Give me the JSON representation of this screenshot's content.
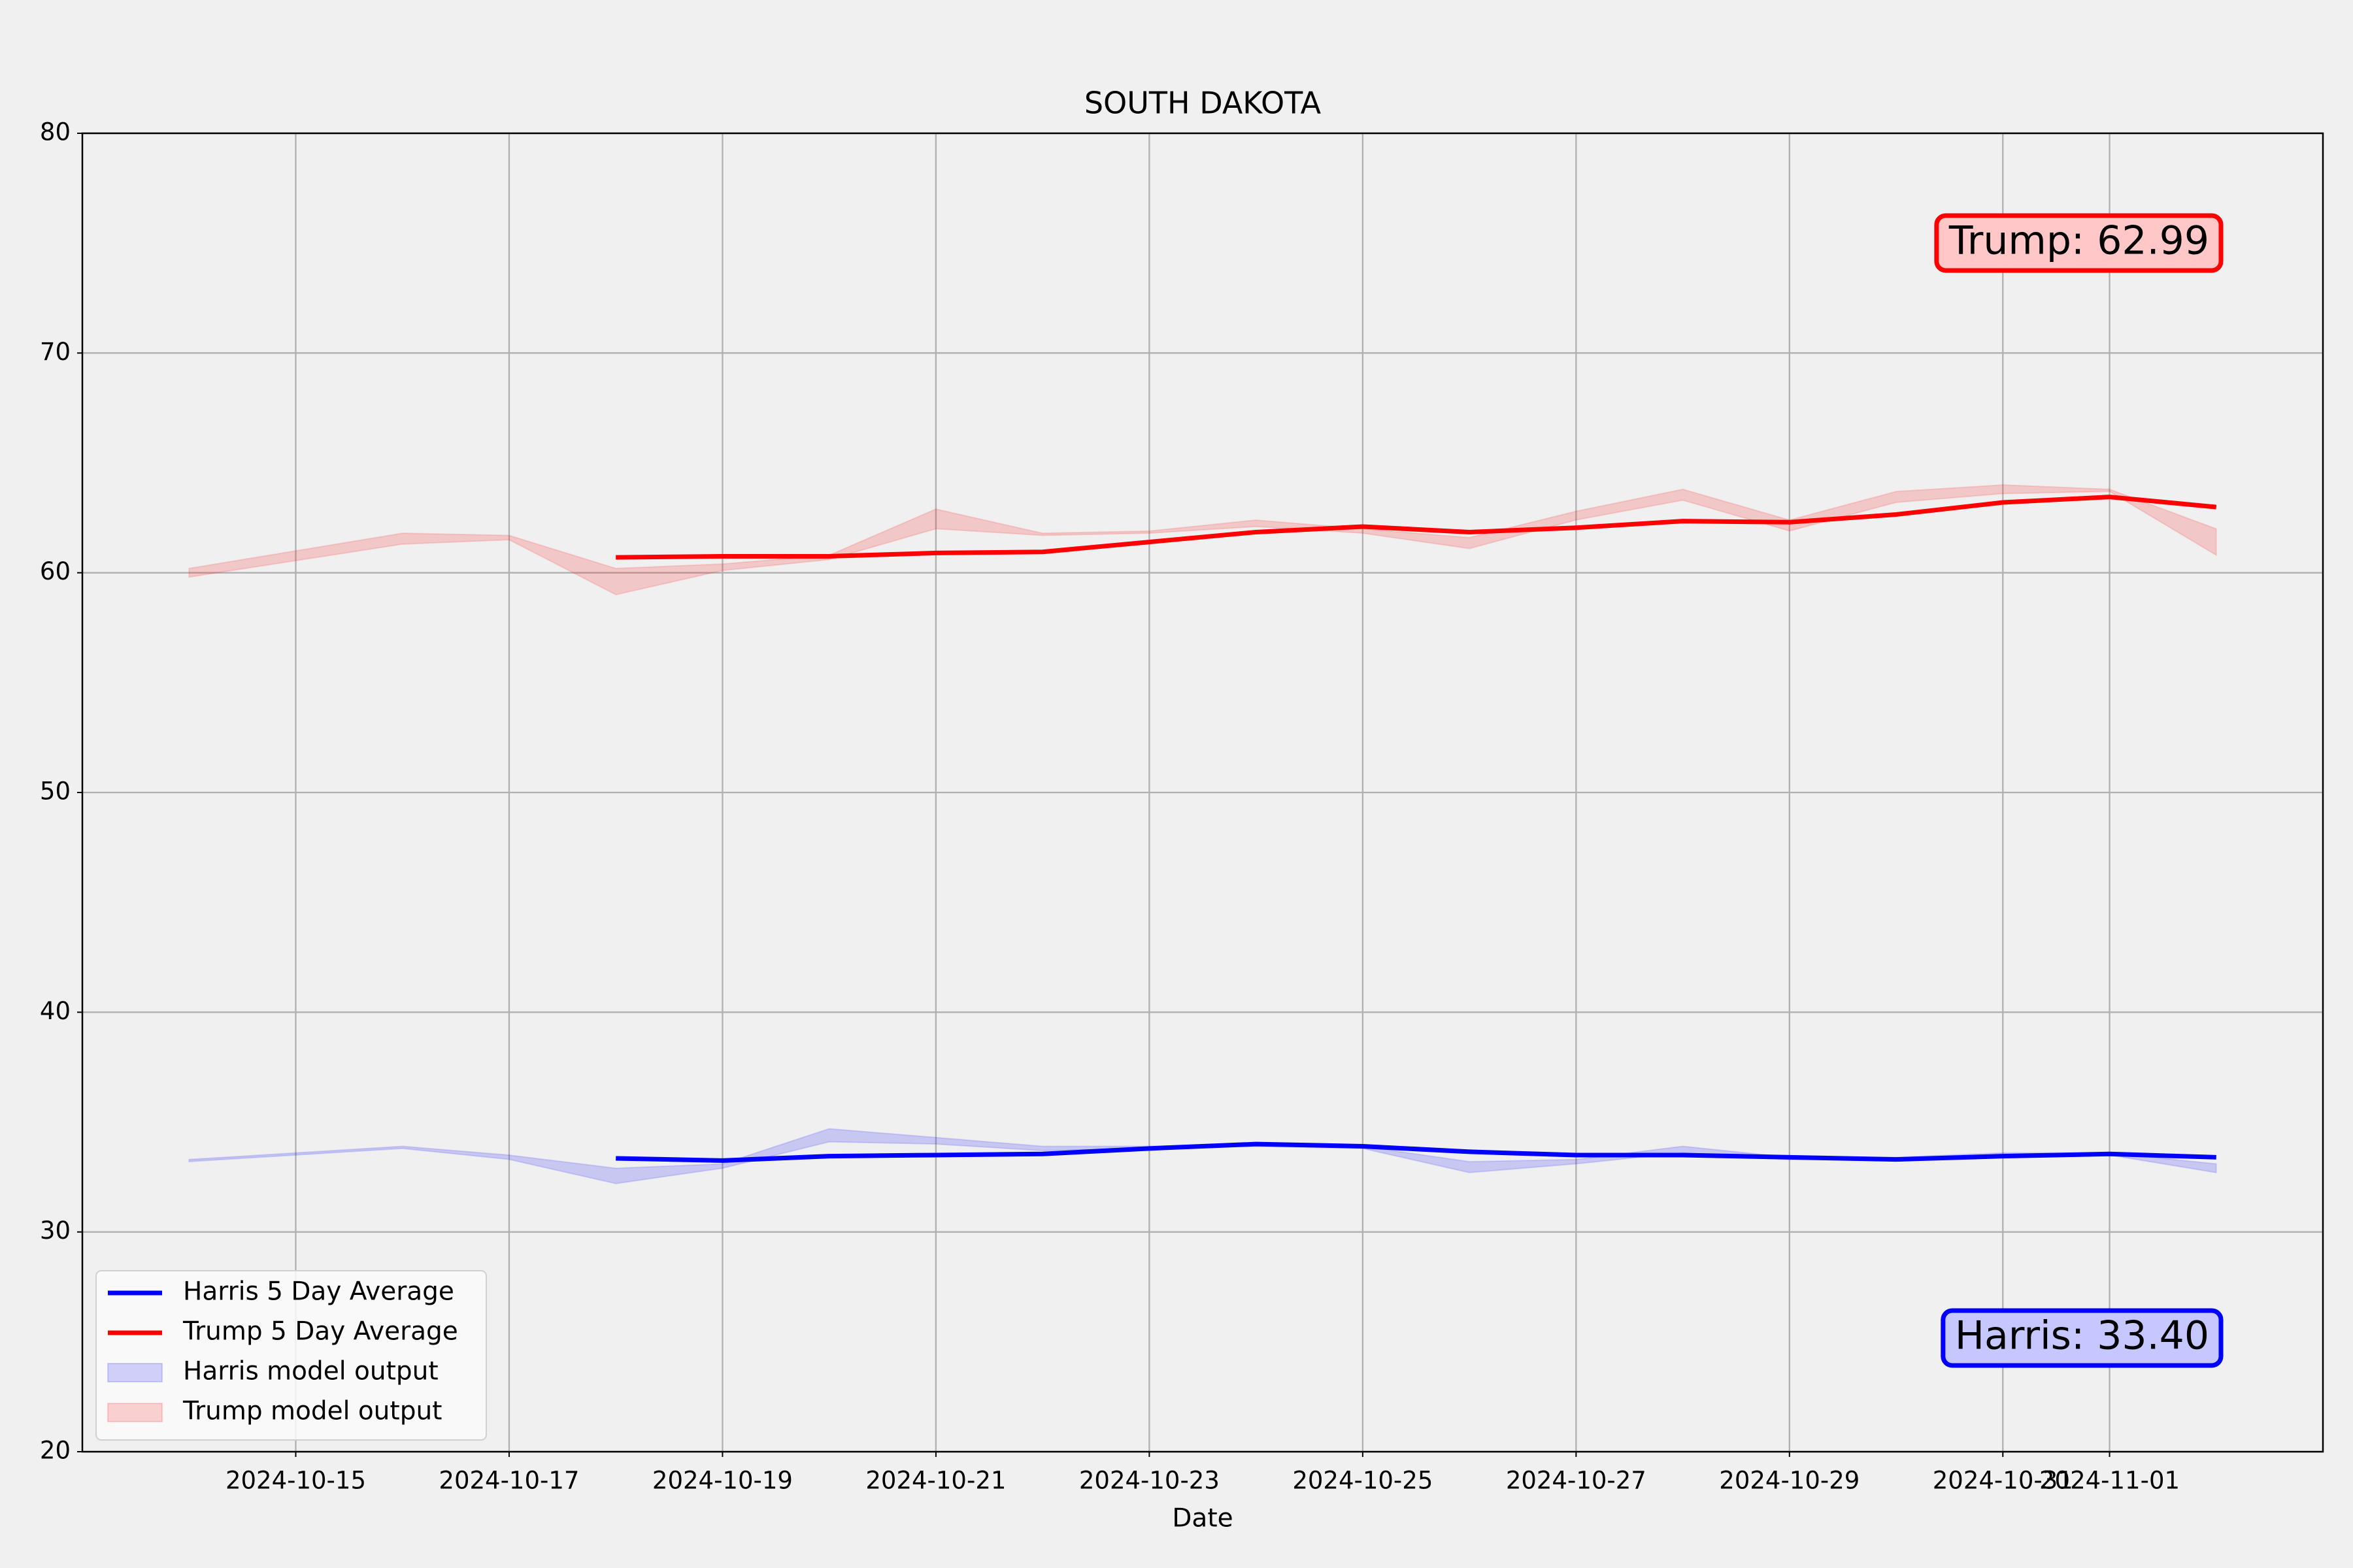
{
  "chart_data": {
    "type": "line",
    "title": "SOUTH DAKOTA",
    "x_label": "Date",
    "x": [
      "2024-10-14",
      "2024-10-16",
      "2024-10-17",
      "2024-10-18",
      "2024-10-19",
      "2024-10-20",
      "2024-10-21",
      "2024-10-22",
      "2024-10-23",
      "2024-10-24",
      "2024-10-25",
      "2024-10-26",
      "2024-10-27",
      "2024-10-28",
      "2024-10-29",
      "2024-10-30",
      "2024-10-31",
      "2024-11-01",
      "2024-11-02"
    ],
    "xlim": [
      "2024-10-13",
      "2024-11-03"
    ],
    "xticks": [
      "2024-10-15",
      "2024-10-17",
      "2024-10-19",
      "2024-10-21",
      "2024-10-23",
      "2024-10-25",
      "2024-10-27",
      "2024-10-29",
      "2024-10-31",
      "2024-11-01"
    ],
    "ylim": [
      20,
      80
    ],
    "yticks": [
      20,
      30,
      40,
      50,
      60,
      70,
      80
    ],
    "grid": true,
    "legend": "lower left",
    "series": [
      {
        "name": "Harris 5 Day Average",
        "type": "line",
        "color": "#0000ff",
        "values": [
          null,
          null,
          null,
          33.35,
          33.25,
          33.45,
          33.5,
          33.55,
          33.8,
          34.0,
          33.9,
          33.65,
          33.5,
          33.5,
          33.4,
          33.3,
          33.45,
          33.55,
          33.4
        ]
      },
      {
        "name": "Trump 5 Day Average",
        "type": "line",
        "color": "#ff0000",
        "values": [
          null,
          null,
          null,
          60.7,
          60.75,
          60.75,
          60.9,
          60.95,
          61.4,
          61.85,
          62.1,
          61.85,
          62.05,
          62.35,
          62.3,
          62.65,
          63.2,
          63.45,
          62.99
        ]
      },
      {
        "name": "Harris model output",
        "type": "band",
        "color": "#0000ff",
        "upper": [
          33.3,
          33.9,
          33.5,
          32.9,
          33.1,
          34.7,
          34.3,
          33.9,
          33.9,
          34.0,
          33.9,
          33.2,
          33.3,
          33.9,
          33.4,
          33.4,
          33.6,
          33.6,
          33.1
        ],
        "lower": [
          33.2,
          33.8,
          33.3,
          32.2,
          32.9,
          34.1,
          34.0,
          33.7,
          33.8,
          33.9,
          33.8,
          32.7,
          33.1,
          33.6,
          33.3,
          33.3,
          33.5,
          33.5,
          32.7
        ]
      },
      {
        "name": "Trump model output",
        "type": "band",
        "color": "#ff0000",
        "upper": [
          60.2,
          61.8,
          61.7,
          60.2,
          60.4,
          60.8,
          62.9,
          61.8,
          61.9,
          62.4,
          62.0,
          61.6,
          62.8,
          63.8,
          62.4,
          63.7,
          64.0,
          63.8,
          62.0
        ],
        "lower": [
          59.8,
          61.3,
          61.5,
          59.0,
          60.1,
          60.6,
          62.0,
          61.7,
          61.8,
          62.1,
          61.8,
          61.1,
          62.4,
          63.3,
          61.9,
          63.2,
          63.6,
          63.7,
          60.8
        ]
      }
    ],
    "annotations": [
      {
        "text": "Trump: 62.99",
        "color": "#ff0000"
      },
      {
        "text": "Harris: 33.40",
        "color": "#0000ff"
      }
    ]
  }
}
